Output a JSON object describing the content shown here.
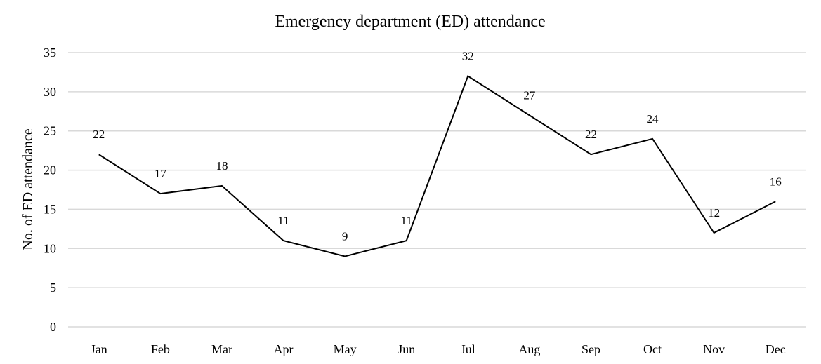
{
  "chart_data": {
    "type": "line",
    "title": "Emergency department (ED) attendance",
    "xlabel": "",
    "ylabel": "No. of ED attendance",
    "categories": [
      "Jan",
      "Feb",
      "Mar",
      "Apr",
      "May",
      "Jun",
      "Jul",
      "Aug",
      "Sep",
      "Oct",
      "Nov",
      "Dec"
    ],
    "series": [
      {
        "name": "ED attendance",
        "values": [
          22,
          17,
          18,
          11,
          9,
          11,
          32,
          27,
          22,
          24,
          12,
          16
        ]
      }
    ],
    "ylim": [
      0,
      35
    ],
    "yticks": [
      0,
      5,
      10,
      15,
      20,
      25,
      30,
      35
    ],
    "grid": true,
    "legend": "none",
    "data_labels": true,
    "colors": {
      "line": "#000000",
      "grid": "#d9d9d9",
      "text": "#000000"
    }
  }
}
